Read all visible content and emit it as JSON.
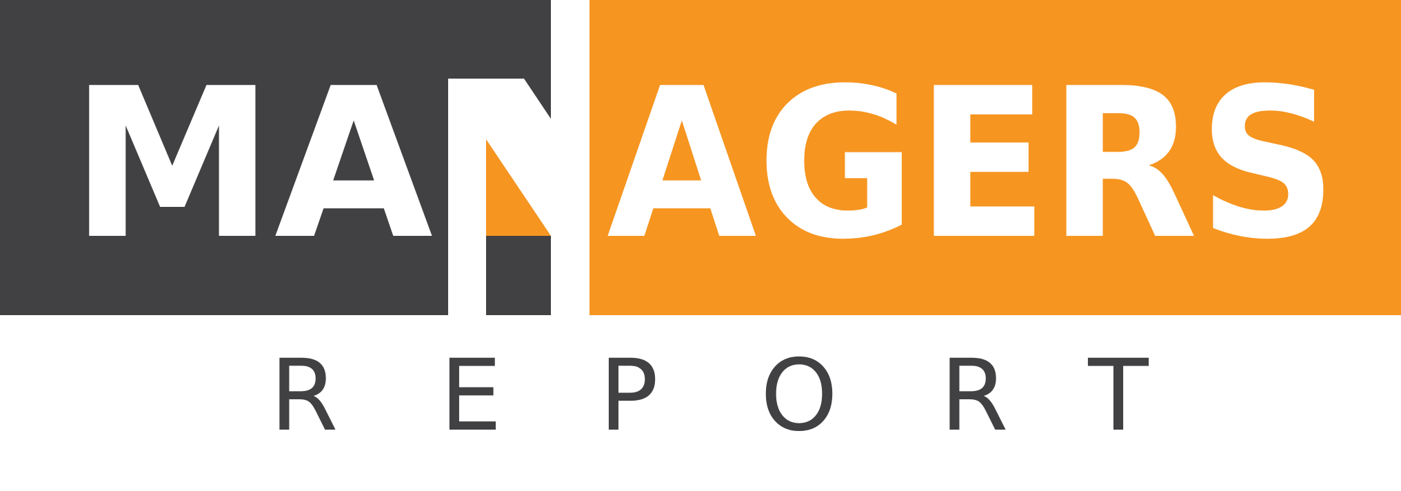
{
  "brand": {
    "title": "MANAGERS",
    "title_left": "MA",
    "title_right": "AGERS",
    "subtitle": "REPORT",
    "subtitle_letters": [
      "R",
      "E",
      "P",
      "O",
      "R",
      "T"
    ]
  },
  "colors": {
    "dark": "#414143",
    "orange": "#F69520",
    "white": "#FFFFFF",
    "text_dark": "#414143"
  }
}
